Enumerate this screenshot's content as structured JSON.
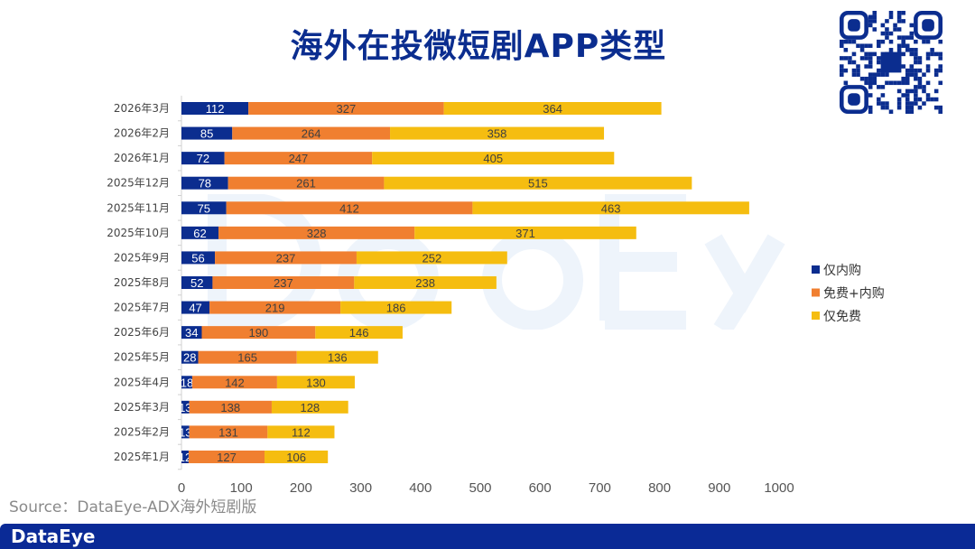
{
  "title": "海外在投微短剧APP类型",
  "source": "Source：DataEye-ADX海外短剧版",
  "footer_logo": "DataEye",
  "watermark": "DataEye",
  "colors": {
    "仅内购": "#0b2d8f",
    "免费+内购": "#f07f30",
    "仅免费": "#f5bd10"
  },
  "chart_data": {
    "type": "bar",
    "orientation": "horizontal",
    "stacked": true,
    "categories": [
      "2026年3月",
      "2026年2月",
      "2026年1月",
      "2025年12月",
      "2025年11月",
      "2025年10月",
      "2025年9月",
      "2025年8月",
      "2025年7月",
      "2025年6月",
      "2025年5月",
      "2025年4月",
      "2025年3月",
      "2025年2月",
      "2025年1月"
    ],
    "series": [
      {
        "name": "仅内购",
        "color": "#0b2d8f",
        "values": [
          112,
          85,
          72,
          78,
          75,
          62,
          56,
          52,
          47,
          34,
          28,
          18,
          13,
          13,
          12
        ]
      },
      {
        "name": "免费+内购",
        "color": "#f07f30",
        "values": [
          327,
          264,
          247,
          261,
          412,
          328,
          237,
          237,
          219,
          190,
          165,
          142,
          138,
          131,
          127
        ]
      },
      {
        "name": "仅免费",
        "color": "#f5bd10",
        "values": [
          364,
          358,
          405,
          515,
          463,
          371,
          252,
          238,
          186,
          146,
          136,
          130,
          128,
          112,
          106
        ]
      }
    ],
    "xlim": [
      0,
      1000
    ],
    "xticks": [
      0,
      100,
      200,
      300,
      400,
      500,
      600,
      700,
      800,
      900,
      1000
    ],
    "legend": "right",
    "grid": false
  }
}
